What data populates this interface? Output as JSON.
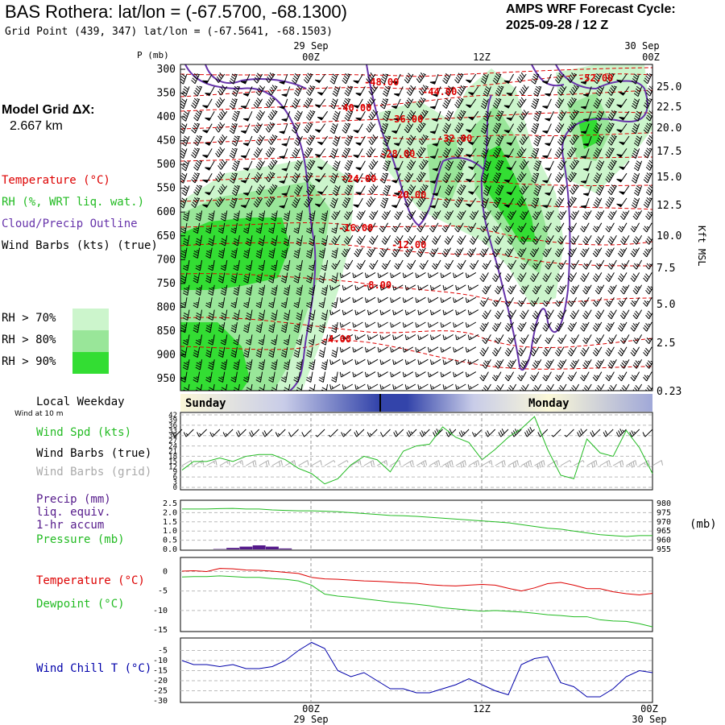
{
  "header": {
    "title": "BAS Rothera:  lat/lon = (-67.5700, -68.1300)",
    "grid_point": "Grid Point (439, 347) lat/lon = (-67.5641, -68.1503)",
    "amps_line1": "AMPS WRF Forecast Cycle:",
    "amps_line2": "2025-09-28 / 12  Z"
  },
  "left_labels": {
    "model_grid_1": "Model Grid ΔX:",
    "model_grid_2": "2.667 km",
    "temperature": "Temperature (°C)",
    "rh": "RH (%, WRT liq. wat.)",
    "cloud": "Cloud/Precip Outline",
    "wind_barbs": "Wind Barbs (kts) (true)",
    "rh70": "RH > 70%",
    "rh80": "RH > 80%",
    "rh90": "RH > 90%",
    "weekday": "Local Weekday",
    "wind10m": "Wind at 10 m",
    "wind_spd": "Wind Spd (kts)",
    "wind_barbs_true": "Wind Barbs (true)",
    "wind_barbs_grid": "Wind Barbs (grid)",
    "precip1": "Precip (mm)",
    "precip2": "liq. equiv.",
    "precip3": "1-hr accum",
    "pressure": "Pressure (mb)",
    "temp2": "Temperature (°C)",
    "dewpoint": "Dewpoint (°C)",
    "windchill": "Wind Chill T (°C)",
    "mb_unit": "(mb)",
    "kft": "Kft MSL",
    "p_axis": "P (mb)"
  },
  "colors": {
    "temp": "#dd0000",
    "rh70": "#ccf5cc",
    "rh80": "#99e699",
    "rh90": "#33dd33",
    "cloud": "#6633aa",
    "green": "#22bb22",
    "precip": "#551a8b",
    "chill": "#0000aa",
    "grey": "#aaaaaa"
  },
  "time_axis": {
    "top_dates": [
      "29 Sep",
      "30 Sep"
    ],
    "ticks": [
      "00Z",
      "12Z",
      "00Z"
    ],
    "bottom_dates": [
      "29 Sep",
      "30 Sep"
    ],
    "days": [
      "Sunday",
      "Monday"
    ]
  },
  "chart_data": [
    {
      "type": "heatmap",
      "title": "Cross-section: Temperature, RH, Cloud outline, Wind barbs",
      "x_hours": [
        0,
        36
      ],
      "pressure_ticks": [
        300,
        350,
        400,
        450,
        500,
        550,
        600,
        650,
        700,
        750,
        800,
        850,
        900,
        950
      ],
      "height_ticks": [
        "25.0",
        "22.5",
        "20.0",
        "17.5",
        "15.0",
        "12.5",
        "10.0",
        "7.5",
        "5.0",
        "2.5",
        "0.23"
      ],
      "temp_labels": [
        "-48.00",
        "-44.00",
        "-40.00",
        "-36.00",
        "-32.00",
        "-28.00",
        "-24.00",
        "-20.00",
        "-16.00",
        "-12.00",
        "-8.00",
        "-4.00",
        "-52.00"
      ]
    },
    {
      "type": "line",
      "title": "Wind Spd (kts)",
      "yticks": [
        "42",
        "39",
        "36",
        "33",
        "30",
        "27",
        "24",
        "21",
        "18",
        "15",
        "12",
        "9",
        "6",
        "3",
        "0"
      ],
      "ylim": [
        0,
        42
      ],
      "x_hours": [
        0,
        1,
        2,
        3,
        4,
        5,
        6,
        7,
        8,
        9,
        10,
        11,
        12,
        13,
        14,
        15,
        16,
        17,
        18,
        19,
        20,
        21,
        22,
        23,
        24,
        25,
        26,
        27,
        28,
        29,
        30,
        31,
        32,
        33,
        34,
        35,
        36
      ],
      "values": [
        10,
        15,
        15,
        17,
        15,
        18,
        19,
        19,
        16,
        11,
        8,
        2,
        5,
        13,
        18,
        16,
        9,
        21,
        24,
        25,
        35,
        29,
        26,
        16,
        22,
        29,
        34,
        41,
        22,
        7,
        5,
        28,
        20,
        18,
        33,
        23,
        8
      ]
    },
    {
      "type": "line",
      "title": "Precip (mm) / Pressure (mb)",
      "precip_yticks": [
        "2.5",
        "2.0",
        "1.5",
        "1.0",
        "0.5",
        "0.0"
      ],
      "pressure_yticks": [
        "980",
        "975",
        "970",
        "965",
        "960",
        "955"
      ],
      "precip_ylim": [
        0,
        2.5
      ],
      "pressure_ylim": [
        955,
        980
      ],
      "x_hours": [
        0,
        1,
        2,
        3,
        4,
        5,
        6,
        7,
        8,
        9,
        10,
        11,
        12,
        13,
        14,
        15,
        16,
        17,
        18,
        19,
        20,
        21,
        22,
        23,
        24,
        25,
        26,
        27,
        28,
        29,
        30,
        31,
        32,
        33,
        34,
        35,
        36
      ],
      "pressure": [
        977.0,
        977.0,
        977.0,
        977.2,
        977.3,
        977.0,
        977.0,
        976.5,
        976.2,
        976.0,
        976.0,
        975.8,
        975.5,
        975.0,
        974.5,
        974.0,
        973.5,
        973.3,
        973.0,
        972.5,
        972.0,
        971.5,
        971.0,
        970.5,
        970.0,
        969.5,
        968.5,
        967.5,
        966.5,
        966.0,
        965.0,
        964.0,
        963.0,
        962.5,
        962.0,
        962.5,
        962.5
      ],
      "precip": [
        0,
        0,
        0,
        0.02,
        0.08,
        0.15,
        0.22,
        0.15,
        0.05,
        0,
        0,
        0,
        0,
        0,
        0,
        0,
        0,
        0,
        0,
        0,
        0,
        0,
        0,
        0,
        0,
        0,
        0,
        0,
        0,
        0,
        0,
        0,
        0,
        0,
        0,
        0,
        0
      ]
    },
    {
      "type": "line",
      "title": "Temperature / Dewpoint (°C)",
      "yticks": [
        "0",
        "-5",
        "-10",
        "-15"
      ],
      "ylim": [
        -15,
        3
      ],
      "x_hours": [
        0,
        1,
        2,
        3,
        4,
        5,
        6,
        7,
        8,
        9,
        10,
        11,
        12,
        13,
        14,
        15,
        16,
        17,
        18,
        19,
        20,
        21,
        22,
        23,
        24,
        25,
        26,
        27,
        28,
        29,
        30,
        31,
        32,
        33,
        34,
        35,
        36
      ],
      "temperature": [
        0.1,
        0.2,
        0.0,
        0.8,
        0.7,
        0.4,
        0.3,
        0.1,
        -0.2,
        -0.5,
        -1.5,
        -1.9,
        -2.0,
        -2.2,
        -2.4,
        -2.5,
        -2.7,
        -2.9,
        -3.0,
        -3.4,
        -3.6,
        -3.7,
        -3.5,
        -3.3,
        -3.5,
        -4.3,
        -5.0,
        -4.2,
        -3.1,
        -2.8,
        -3.5,
        -4.4,
        -4.4,
        -5.2,
        -5.7,
        -6.0,
        -5.6
      ],
      "dewpoint": [
        -1.4,
        -1.3,
        -1.3,
        -1.1,
        -1.3,
        -1.5,
        -1.5,
        -1.8,
        -2.0,
        -2.4,
        -3.5,
        -5.8,
        -6.3,
        -6.6,
        -7.0,
        -7.4,
        -7.8,
        -8.1,
        -8.4,
        -8.8,
        -9.3,
        -9.6,
        -9.9,
        -10.2,
        -10.0,
        -10.2,
        -10.4,
        -10.7,
        -11.1,
        -11.3,
        -11.6,
        -11.6,
        -12.4,
        -12.7,
        -12.8,
        -13.4,
        -14.2
      ]
    },
    {
      "type": "line",
      "title": "Wind Chill T (°C)",
      "yticks": [
        "-5",
        "-10",
        "-15",
        "-20",
        "-25",
        "-30"
      ],
      "ylim": [
        -30,
        0
      ],
      "x_hours": [
        0,
        1,
        2,
        3,
        4,
        5,
        6,
        7,
        8,
        9,
        10,
        11,
        12,
        13,
        14,
        15,
        16,
        17,
        18,
        19,
        20,
        21,
        22,
        23,
        24,
        25,
        26,
        27,
        28,
        29,
        30,
        31,
        32,
        33,
        34,
        35,
        36
      ],
      "values": [
        -10,
        -12,
        -12,
        -13,
        -12,
        -14,
        -14,
        -13,
        -10,
        -5,
        -1,
        -4,
        -15,
        -18,
        -16,
        -20,
        -24,
        -24,
        -26,
        -26,
        -24,
        -22,
        -19,
        -22,
        -25,
        -27,
        -12,
        -9,
        -8,
        -21,
        -23,
        -28,
        -28,
        -24,
        -18,
        -15,
        -16
      ]
    }
  ]
}
